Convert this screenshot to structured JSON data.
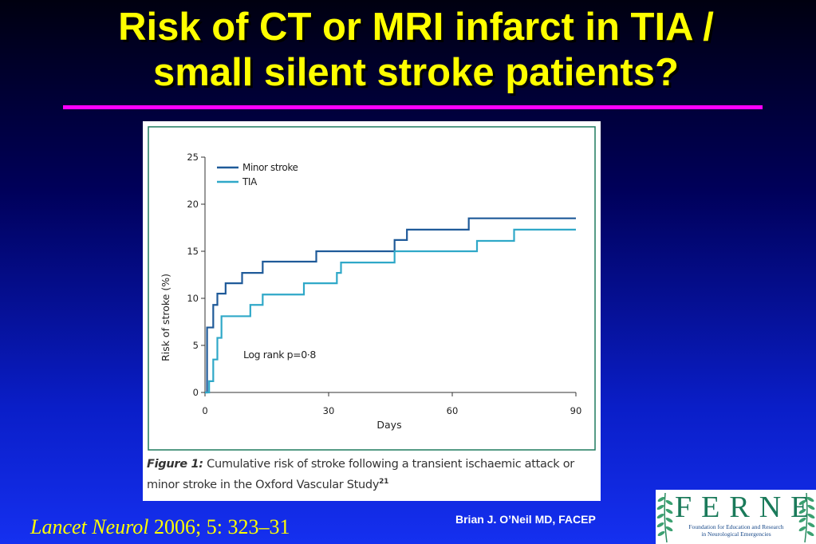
{
  "slide": {
    "title_line1": "Risk of CT or MRI infarct in TIA /",
    "title_line2": "small silent stroke patients?",
    "citation_journal": "Lancet Neurol",
    "citation_rest": " 2006; 5: 323–31",
    "author": "Brian J. O’Neil MD, FACEP",
    "colors": {
      "title": "#ffff00",
      "rule": "#ff00ff",
      "background_top": "#000010",
      "background_bottom": "#1530f0"
    }
  },
  "logo": {
    "letters": "FERNE",
    "subtitle_line1": "Foundation for Education and Research",
    "subtitle_line2": "in Neurological Emergencies",
    "icon": "fern-leaf-icon"
  },
  "figure": {
    "caption_label": "Figure 1:",
    "caption_text": " Cumulative risk of stroke following a transient ischaemic attack or minor stroke in the Oxford Vascular Study",
    "caption_ref": "21"
  },
  "chart_data": {
    "type": "line",
    "subtype": "step",
    "title": "",
    "xlabel": "Days",
    "ylabel": "Risk of stroke (%)",
    "xlim": [
      0,
      90
    ],
    "ylim": [
      0,
      25
    ],
    "xticks": [
      0,
      30,
      60,
      90
    ],
    "yticks": [
      0,
      5,
      10,
      15,
      20,
      25
    ],
    "grid": false,
    "legend_position": "top-left",
    "annotation": "Log rank p=0·8",
    "series": [
      {
        "name": "Minor stroke",
        "color": "#1f5a99",
        "x": [
          0,
          0.5,
          2,
          3,
          5,
          9,
          14,
          27,
          46,
          49,
          64,
          90
        ],
        "y": [
          0,
          6.9,
          9.3,
          10.5,
          11.6,
          12.7,
          13.9,
          15.0,
          16.2,
          17.3,
          18.5,
          18.5
        ]
      },
      {
        "name": "TIA",
        "color": "#2fa8c8",
        "x": [
          0,
          1,
          2,
          3,
          4,
          11,
          14,
          24,
          32,
          33,
          46,
          66,
          75,
          90
        ],
        "y": [
          0,
          1.2,
          3.5,
          5.8,
          8.1,
          9.3,
          10.4,
          11.6,
          12.7,
          13.8,
          15.0,
          16.1,
          17.3,
          17.3
        ]
      }
    ]
  }
}
